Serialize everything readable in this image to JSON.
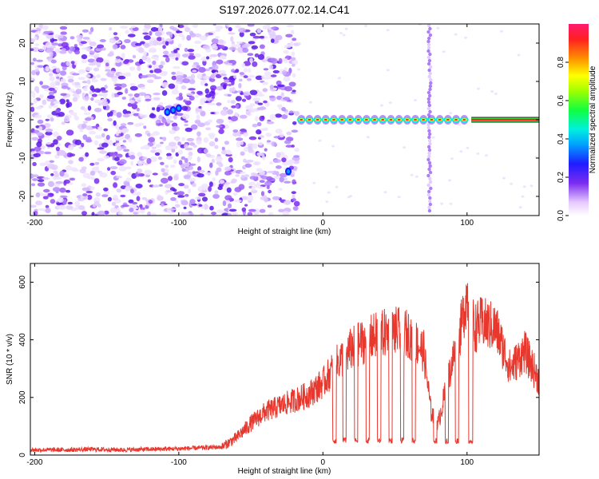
{
  "title": "S197.2026.077.02.14.C41",
  "chart_data": [
    {
      "type": "heatmap",
      "xlabel": "Height of straight line (km)",
      "ylabel": "Frequency (Hz)",
      "xlim": [
        -203,
        150
      ],
      "ylim": [
        -25,
        25
      ],
      "xticks": [
        -200,
        -100,
        0,
        100
      ],
      "yticks": [
        -20,
        -10,
        0,
        10,
        20
      ],
      "colorbar": {
        "label": "Normalized spectral amplitude",
        "range": [
          0,
          1
        ],
        "ticks": [
          "0.0",
          "0.2",
          "0.4",
          "0.6",
          "0.8"
        ]
      },
      "features": {
        "noise_region_x": [
          -203,
          -18
        ],
        "tone_frequency": 0,
        "tone_start_x": -15,
        "strong_tone_start_x": 103,
        "vertical_stripes_x": [
          74
        ]
      }
    },
    {
      "type": "line",
      "xlabel": "Height of straight line (km)",
      "ylabel": "SNR (10 * v/v)",
      "xlim": [
        -203,
        150
      ],
      "ylim": [
        0,
        665
      ],
      "xticks": [
        -200,
        -100,
        0,
        100
      ],
      "yticks": [
        0,
        200,
        400,
        600
      ],
      "series": [
        {
          "color": "#e8382e",
          "x": [
            -203,
            -180,
            -160,
            -140,
            -120,
            -100,
            -80,
            -70,
            -60,
            -50,
            -40,
            -30,
            -20,
            -10,
            0,
            10,
            20,
            30,
            40,
            50,
            60,
            70,
            75,
            80,
            90,
            95,
            100,
            105,
            110,
            120,
            130,
            140,
            150
          ],
          "values": [
            18,
            18,
            20,
            18,
            20,
            22,
            26,
            28,
            60,
            110,
            150,
            170,
            190,
            210,
            250,
            320,
            370,
            400,
            420,
            430,
            420,
            360,
            150,
            110,
            330,
            420,
            560,
            440,
            460,
            440,
            300,
            360,
            260
          ]
        }
      ]
    }
  ]
}
